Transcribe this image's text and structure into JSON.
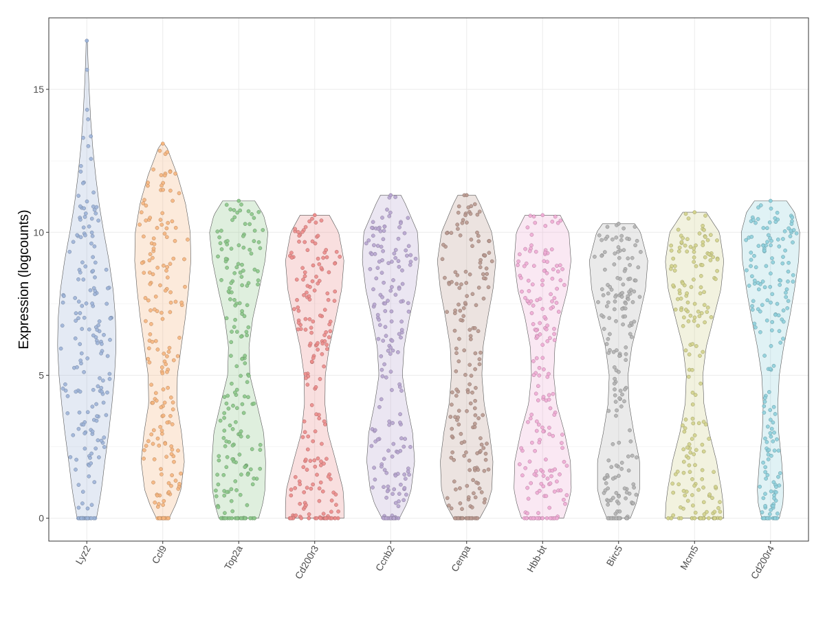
{
  "chart_data": {
    "type": "violin",
    "title": "",
    "xlabel": "",
    "ylabel": "Expression (logcounts)",
    "ylim": [
      -0.8,
      17.5
    ],
    "yticks": [
      0,
      5,
      10,
      15
    ],
    "grid": true,
    "legend": "none",
    "categories": [
      "Lyz2",
      "Ccl9",
      "Top2a",
      "Cd200r3",
      "Ccnb2",
      "Cenpa",
      "Hbb-bt",
      "Birc5",
      "Mcm5",
      "Cd200r4"
    ],
    "colors": [
      "#9db4d8",
      "#f5b57e",
      "#8cc68a",
      "#eb8c8b",
      "#b7a5cf",
      "#b99990",
      "#eeabd4",
      "#b3b3b3",
      "#d2d28c",
      "#8ecfdb"
    ],
    "series": [
      {
        "max": 16.7,
        "profile": [
          [
            0,
            0.33
          ],
          [
            0.5,
            0.42
          ],
          [
            1,
            0.5
          ],
          [
            2,
            0.62
          ],
          [
            3,
            0.75
          ],
          [
            4,
            0.86
          ],
          [
            5,
            0.95
          ],
          [
            6,
            1.0
          ],
          [
            7,
            0.98
          ],
          [
            8,
            0.9
          ],
          [
            9,
            0.76
          ],
          [
            10,
            0.58
          ],
          [
            11,
            0.42
          ],
          [
            12,
            0.3
          ],
          [
            13,
            0.2
          ],
          [
            14,
            0.13
          ],
          [
            15,
            0.08
          ],
          [
            16,
            0.04
          ],
          [
            16.7,
            0.02
          ]
        ]
      },
      {
        "max": 13.1,
        "profile": [
          [
            0,
            0.22
          ],
          [
            0.5,
            0.45
          ],
          [
            1,
            0.62
          ],
          [
            2,
            0.74
          ],
          [
            3,
            0.64
          ],
          [
            4,
            0.48
          ],
          [
            5,
            0.5
          ],
          [
            6,
            0.63
          ],
          [
            7,
            0.77
          ],
          [
            8,
            0.88
          ],
          [
            9,
            0.96
          ],
          [
            10,
            0.94
          ],
          [
            11,
            0.78
          ],
          [
            12,
            0.5
          ],
          [
            13,
            0.13
          ],
          [
            13.1,
            0.04
          ]
        ]
      },
      {
        "max": 11.1,
        "profile": [
          [
            0,
            0.68
          ],
          [
            0.5,
            0.82
          ],
          [
            1,
            0.9
          ],
          [
            2,
            0.92
          ],
          [
            3,
            0.85
          ],
          [
            4,
            0.62
          ],
          [
            5,
            0.38
          ],
          [
            6,
            0.35
          ],
          [
            7,
            0.48
          ],
          [
            8,
            0.7
          ],
          [
            9,
            0.9
          ],
          [
            10,
            1.0
          ],
          [
            10.6,
            0.85
          ],
          [
            11.1,
            0.55
          ]
        ]
      },
      {
        "max": 10.6,
        "profile": [
          [
            0,
            1.0
          ],
          [
            0.5,
            1.0
          ],
          [
            1,
            0.97
          ],
          [
            2,
            0.72
          ],
          [
            3,
            0.45
          ],
          [
            4,
            0.35
          ],
          [
            5,
            0.36
          ],
          [
            6,
            0.5
          ],
          [
            7,
            0.72
          ],
          [
            8,
            0.92
          ],
          [
            9,
            1.0
          ],
          [
            10,
            0.82
          ],
          [
            10.6,
            0.5
          ]
        ]
      },
      {
        "max": 11.3,
        "profile": [
          [
            0,
            0.3
          ],
          [
            0.5,
            0.55
          ],
          [
            1,
            0.7
          ],
          [
            2,
            0.82
          ],
          [
            3,
            0.75
          ],
          [
            4,
            0.55
          ],
          [
            5,
            0.4
          ],
          [
            6,
            0.46
          ],
          [
            7,
            0.64
          ],
          [
            8,
            0.85
          ],
          [
            9,
            0.97
          ],
          [
            10,
            0.92
          ],
          [
            11,
            0.5
          ],
          [
            11.3,
            0.35
          ]
        ]
      },
      {
        "max": 11.3,
        "profile": [
          [
            0,
            0.45
          ],
          [
            0.5,
            0.72
          ],
          [
            1,
            0.86
          ],
          [
            2,
            0.9
          ],
          [
            3,
            0.78
          ],
          [
            4,
            0.6
          ],
          [
            5,
            0.52
          ],
          [
            6,
            0.56
          ],
          [
            7,
            0.72
          ],
          [
            8,
            0.9
          ],
          [
            9,
            1.0
          ],
          [
            10,
            0.86
          ],
          [
            11,
            0.45
          ],
          [
            11.3,
            0.3
          ]
        ]
      },
      {
        "max": 10.6,
        "profile": [
          [
            0,
            0.72
          ],
          [
            0.5,
            0.88
          ],
          [
            1,
            0.98
          ],
          [
            2,
            0.95
          ],
          [
            3,
            0.75
          ],
          [
            4,
            0.48
          ],
          [
            5,
            0.38
          ],
          [
            6,
            0.42
          ],
          [
            7,
            0.6
          ],
          [
            8,
            0.85
          ],
          [
            9,
            0.97
          ],
          [
            10,
            0.9
          ],
          [
            10.6,
            0.6
          ]
        ]
      },
      {
        "max": 10.3,
        "profile": [
          [
            0,
            0.4
          ],
          [
            0.5,
            0.6
          ],
          [
            1,
            0.72
          ],
          [
            2,
            0.72
          ],
          [
            3,
            0.52
          ],
          [
            4,
            0.36
          ],
          [
            5,
            0.32
          ],
          [
            6,
            0.45
          ],
          [
            7,
            0.7
          ],
          [
            8,
            0.92
          ],
          [
            9,
            1.0
          ],
          [
            10,
            0.75
          ],
          [
            10.3,
            0.55
          ]
        ]
      },
      {
        "max": 10.7,
        "profile": [
          [
            0,
            1.0
          ],
          [
            0.5,
            0.98
          ],
          [
            1,
            0.92
          ],
          [
            2,
            0.75
          ],
          [
            3,
            0.5
          ],
          [
            4,
            0.32
          ],
          [
            5,
            0.28
          ],
          [
            6,
            0.4
          ],
          [
            7,
            0.65
          ],
          [
            8,
            0.9
          ],
          [
            9,
            1.0
          ],
          [
            10,
            0.85
          ],
          [
            10.7,
            0.4
          ]
        ]
      },
      {
        "max": 11.1,
        "profile": [
          [
            0,
            0.3
          ],
          [
            0.5,
            0.42
          ],
          [
            1,
            0.45
          ],
          [
            2,
            0.38
          ],
          [
            3,
            0.28
          ],
          [
            4,
            0.25
          ],
          [
            5,
            0.3
          ],
          [
            6,
            0.45
          ],
          [
            7,
            0.65
          ],
          [
            8,
            0.82
          ],
          [
            9,
            0.96
          ],
          [
            10,
            1.0
          ],
          [
            10.7,
            0.82
          ],
          [
            11.1,
            0.55
          ]
        ]
      }
    ]
  }
}
